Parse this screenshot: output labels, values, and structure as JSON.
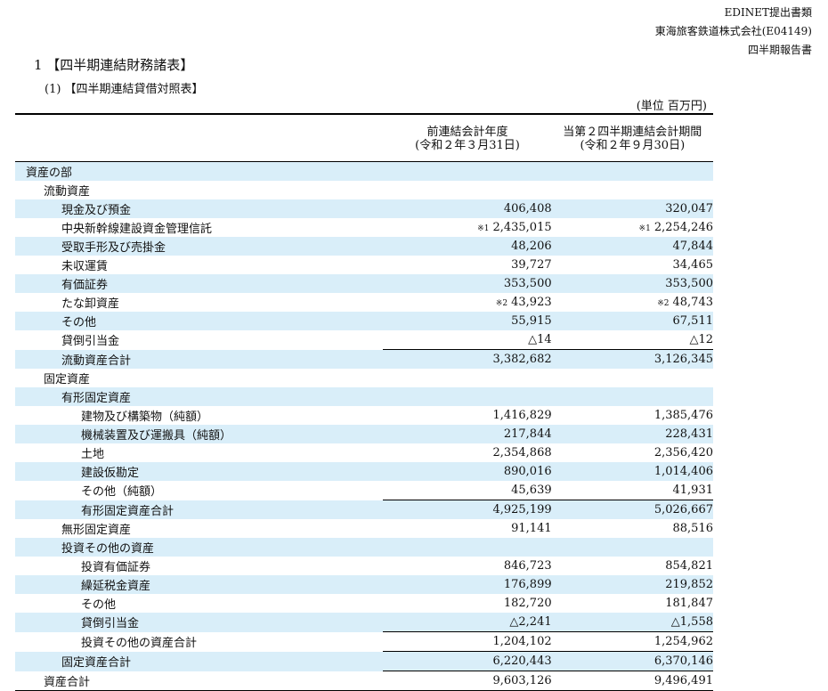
{
  "header": {
    "line1": "EDINET提出書類",
    "line2": "東海旅客鉄道株式会社(E04149)",
    "line3": "四半期報告書"
  },
  "title": "1 【四半期連結財務諸表】",
  "subtitle": "(1) 【四半期連結貸借対照表】",
  "unit": "(単位 百万円)",
  "columns": {
    "prev_line1": "前連結会計年度",
    "prev_line2": "(令和２年３月31日)",
    "curr_line1": "当第２四半期連結会計期間",
    "curr_line2": "(令和２年９月30日)"
  },
  "rows": [
    {
      "label": "資産の部",
      "indent": 0,
      "prev": "",
      "curr": "",
      "shade": true,
      "style": ""
    },
    {
      "label": "流動資産",
      "indent": 1,
      "prev": "",
      "curr": "",
      "shade": false,
      "style": ""
    },
    {
      "label": "現金及び預金",
      "indent": 2,
      "prev": "406,408",
      "curr": "320,047",
      "shade": true,
      "style": ""
    },
    {
      "label": "中央新幹線建設資金管理信託",
      "indent": 2,
      "prev": "2,435,015",
      "curr": "2,254,246",
      "prev_note": "※1",
      "curr_note": "※1",
      "shade": false,
      "style": ""
    },
    {
      "label": "受取手形及び売掛金",
      "indent": 2,
      "prev": "48,206",
      "curr": "47,844",
      "shade": true,
      "style": ""
    },
    {
      "label": "未収運賃",
      "indent": 2,
      "prev": "39,727",
      "curr": "34,465",
      "shade": false,
      "style": ""
    },
    {
      "label": "有価証券",
      "indent": 2,
      "prev": "353,500",
      "curr": "353,500",
      "shade": true,
      "style": ""
    },
    {
      "label": "たな卸資産",
      "indent": 2,
      "prev": "43,923",
      "curr": "48,743",
      "prev_note": "※2",
      "curr_note": "※2",
      "shade": false,
      "style": ""
    },
    {
      "label": "その他",
      "indent": 2,
      "prev": "55,915",
      "curr": "67,511",
      "shade": true,
      "style": ""
    },
    {
      "label": "貸倒引当金",
      "indent": 2,
      "prev": "△14",
      "curr": "△12",
      "shade": false,
      "style": ""
    },
    {
      "label": "流動資産合計",
      "indent": 2,
      "prev": "3,382,682",
      "curr": "3,126,345",
      "shade": true,
      "style": "sum"
    },
    {
      "label": "固定資産",
      "indent": 1,
      "prev": "",
      "curr": "",
      "shade": false,
      "style": ""
    },
    {
      "label": "有形固定資産",
      "indent": 2,
      "prev": "",
      "curr": "",
      "shade": true,
      "style": ""
    },
    {
      "label": "建物及び構築物（純額）",
      "indent": 3,
      "prev": "1,416,829",
      "curr": "1,385,476",
      "shade": false,
      "style": ""
    },
    {
      "label": "機械装置及び運搬具（純額）",
      "indent": 3,
      "prev": "217,844",
      "curr": "228,431",
      "shade": true,
      "style": ""
    },
    {
      "label": "土地",
      "indent": 3,
      "prev": "2,354,868",
      "curr": "2,356,420",
      "shade": false,
      "style": ""
    },
    {
      "label": "建設仮勘定",
      "indent": 3,
      "prev": "890,016",
      "curr": "1,014,406",
      "shade": true,
      "style": ""
    },
    {
      "label": "その他（純額）",
      "indent": 3,
      "prev": "45,639",
      "curr": "41,931",
      "shade": false,
      "style": ""
    },
    {
      "label": "有形固定資産合計",
      "indent": 3,
      "prev": "4,925,199",
      "curr": "5,026,667",
      "shade": true,
      "style": "sum"
    },
    {
      "label": "無形固定資産",
      "indent": 2,
      "prev": "91,141",
      "curr": "88,516",
      "shade": false,
      "style": ""
    },
    {
      "label": "投資その他の資産",
      "indent": 2,
      "prev": "",
      "curr": "",
      "shade": true,
      "style": ""
    },
    {
      "label": "投資有価証券",
      "indent": 3,
      "prev": "846,723",
      "curr": "854,821",
      "shade": false,
      "style": ""
    },
    {
      "label": "繰延税金資産",
      "indent": 3,
      "prev": "176,899",
      "curr": "219,852",
      "shade": true,
      "style": ""
    },
    {
      "label": "その他",
      "indent": 3,
      "prev": "182,720",
      "curr": "181,847",
      "shade": false,
      "style": ""
    },
    {
      "label": "貸倒引当金",
      "indent": 3,
      "prev": "△2,241",
      "curr": "△1,558",
      "shade": true,
      "style": ""
    },
    {
      "label": "投資その他の資産合計",
      "indent": 3,
      "prev": "1,204,102",
      "curr": "1,254,962",
      "shade": false,
      "style": "sum"
    },
    {
      "label": "固定資産合計",
      "indent": 2,
      "prev": "6,220,443",
      "curr": "6,370,146",
      "shade": true,
      "style": "sum"
    },
    {
      "label": "資産合計",
      "indent": 1,
      "prev": "9,603,126",
      "curr": "9,496,491",
      "shade": false,
      "style": "total"
    }
  ]
}
